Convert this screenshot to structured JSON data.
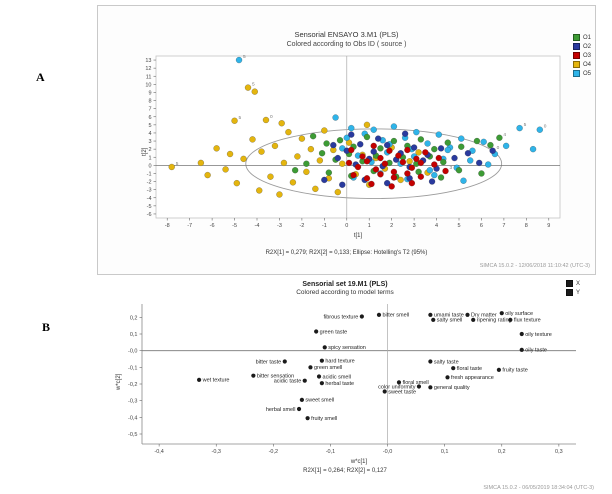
{
  "page": {
    "panel_a_label": "A",
    "panel_b_label": "B"
  },
  "chart_data": [
    {
      "type": "scatter",
      "title": "Sensorial ENSAYO 3.M1 (PLS)",
      "subtitle": "Colored according to Obs ID ( source )",
      "xlabel": "t[1]",
      "ylabel": "t[2]",
      "xlim": [
        -8.5,
        9.5
      ],
      "ylim": [
        -6.5,
        13.5
      ],
      "xticks": [
        -8,
        -7,
        -6,
        -5,
        -4,
        -3,
        -2,
        -1,
        0,
        1,
        2,
        3,
        4,
        5,
        6,
        7,
        8,
        9
      ],
      "yticks": [
        -6,
        -5,
        -4,
        -3,
        -2,
        -1,
        0,
        1,
        2,
        3,
        4,
        5,
        6,
        7,
        8,
        9,
        10,
        11,
        12,
        13
      ],
      "ellipse": {
        "cx": 1.2,
        "cy": 0.2,
        "rx": 5.7,
        "ry": 4.3,
        "note": "Hotelling's T2 (95%)"
      },
      "footnote": "R2X[1] = 0,279; R2X[2] = 0,133; Ellipse: Hotelling's T2 (95%)",
      "footer": "SIMCA 15.0.2 - 12/06/2018 11:10:42 (UTC-3)",
      "legend": [
        {
          "label": "O1",
          "color": "#3d9b35"
        },
        {
          "label": "O2",
          "color": "#2a3a9e"
        },
        {
          "label": "O3",
          "color": "#c40000"
        },
        {
          "label": "O4",
          "color": "#e4b50e"
        },
        {
          "label": "O5",
          "color": "#2fb4e9"
        }
      ],
      "series": [
        {
          "name": "O4",
          "color": "#e4b50e",
          "points": [
            [
              -7.8,
              -0.2,
              "5"
            ],
            [
              -6.5,
              0.3
            ],
            [
              -6.2,
              -1.2
            ],
            [
              -5.8,
              2.1
            ],
            [
              -5.4,
              -0.5
            ],
            [
              -5.2,
              1.4
            ],
            [
              -5.0,
              5.5,
              "5"
            ],
            [
              -4.9,
              -2.2
            ],
            [
              -4.6,
              0.8
            ],
            [
              -4.4,
              9.6,
              "5"
            ],
            [
              -4.1,
              9.1
            ],
            [
              -4.2,
              3.2
            ],
            [
              -3.9,
              -3.1
            ],
            [
              -3.8,
              1.7
            ],
            [
              -3.6,
              5.6,
              "0"
            ],
            [
              -3.4,
              -1.4
            ],
            [
              -3.2,
              2.4
            ],
            [
              -3.0,
              -3.6
            ],
            [
              -2.8,
              0.3
            ],
            [
              -2.6,
              4.1
            ],
            [
              -2.4,
              -2.1
            ],
            [
              -2.2,
              1.1
            ],
            [
              -2.0,
              3.3
            ],
            [
              -1.8,
              -0.8
            ],
            [
              -1.6,
              2.0
            ],
            [
              -1.4,
              -2.9
            ],
            [
              -1.2,
              0.6
            ],
            [
              -1.0,
              4.3
            ],
            [
              -0.8,
              -1.6
            ],
            [
              -0.6,
              1.9
            ],
            [
              -0.4,
              -3.3
            ],
            [
              -0.2,
              0.2
            ],
            [
              0.1,
              2.8
            ],
            [
              0.4,
              -1.1
            ],
            [
              0.7,
              1.3
            ],
            [
              1.0,
              -2.4
            ],
            [
              1.3,
              0.9
            ],
            [
              1.7,
              -0.4
            ],
            [
              2.0,
              2.2
            ],
            [
              2.4,
              -1.8
            ],
            [
              2.8,
              0.5
            ],
            [
              3.2,
              1.6
            ],
            [
              3.6,
              -0.9
            ],
            [
              0.9,
              5.0
            ],
            [
              -2.9,
              5.2
            ]
          ]
        },
        {
          "name": "O5",
          "color": "#2fb4e9",
          "points": [
            [
              -4.8,
              13.0,
              "5"
            ],
            [
              -0.5,
              5.9
            ],
            [
              0.2,
              4.6
            ],
            [
              0.8,
              3.9
            ],
            [
              1.2,
              4.4
            ],
            [
              1.6,
              3.1
            ],
            [
              2.1,
              4.8
            ],
            [
              2.6,
              3.4
            ],
            [
              3.1,
              4.1
            ],
            [
              3.6,
              2.7
            ],
            [
              4.1,
              3.8
            ],
            [
              4.6,
              2.2
            ],
            [
              5.1,
              3.3
            ],
            [
              5.6,
              1.8
            ],
            [
              6.1,
              2.9
            ],
            [
              6.6,
              1.4
            ],
            [
              7.1,
              2.4
            ],
            [
              7.7,
              4.6,
              "5"
            ],
            [
              8.3,
              2.0
            ],
            [
              8.6,
              4.4,
              "0"
            ],
            [
              -0.2,
              2.1
            ],
            [
              0.5,
              1.2
            ],
            [
              1.1,
              0.4
            ],
            [
              1.8,
              1.6
            ],
            [
              2.4,
              0.2
            ],
            [
              3.0,
              1.1
            ],
            [
              3.7,
              -0.6
            ],
            [
              4.3,
              0.8
            ],
            [
              4.9,
              -0.3
            ],
            [
              5.5,
              0.6
            ],
            [
              0.3,
              -1.5
            ],
            [
              1.5,
              -1.0
            ],
            [
              2.7,
              -1.7
            ],
            [
              3.9,
              -1.2
            ],
            [
              5.2,
              -1.9
            ],
            [
              6.3,
              0.1
            ],
            [
              1.9,
              2.6
            ],
            [
              2.9,
              2.0
            ],
            [
              4.5,
              1.9
            ],
            [
              0.0,
              3.4
            ]
          ]
        },
        {
          "name": "O1",
          "color": "#3d9b35",
          "points": [
            [
              -1.5,
              3.6
            ],
            [
              -0.9,
              2.7
            ],
            [
              -0.3,
              3.1
            ],
            [
              0.3,
              2.3
            ],
            [
              0.9,
              3.5
            ],
            [
              1.5,
              2.1
            ],
            [
              2.1,
              3.0
            ],
            [
              2.7,
              2.4
            ],
            [
              3.3,
              3.2
            ],
            [
              3.9,
              2.0
            ],
            [
              4.5,
              2.8
            ],
            [
              5.1,
              2.3
            ],
            [
              5.8,
              3.0
            ],
            [
              6.4,
              2.5
            ],
            [
              -1.1,
              1.5
            ],
            [
              -0.5,
              0.7
            ],
            [
              0.1,
              1.4
            ],
            [
              0.7,
              0.5
            ],
            [
              1.3,
              1.2
            ],
            [
              1.9,
              0.3
            ],
            [
              2.5,
              1.0
            ],
            [
              3.1,
              0.2
            ],
            [
              3.7,
              1.1
            ],
            [
              4.3,
              0.4
            ],
            [
              -0.8,
              -0.9
            ],
            [
              0.2,
              -1.3
            ],
            [
              1.2,
              -0.7
            ],
            [
              2.2,
              -1.4
            ],
            [
              3.2,
              -0.8
            ],
            [
              4.2,
              -1.5
            ],
            [
              5.0,
              -0.6
            ],
            [
              6.0,
              -1.0
            ],
            [
              -1.8,
              0.2
            ],
            [
              -2.3,
              -0.6
            ],
            [
              6.8,
              3.4,
              "4"
            ]
          ]
        },
        {
          "name": "O2",
          "color": "#2a3a9e",
          "points": [
            [
              -0.6,
              2.5
            ],
            [
              0.0,
              1.8
            ],
            [
              0.6,
              2.6
            ],
            [
              1.2,
              1.7
            ],
            [
              1.8,
              2.5
            ],
            [
              2.4,
              1.5
            ],
            [
              3.0,
              2.2
            ],
            [
              3.6,
              1.3
            ],
            [
              4.2,
              2.1
            ],
            [
              -0.4,
              0.9
            ],
            [
              0.4,
              0.1
            ],
            [
              1.0,
              0.8
            ],
            [
              1.6,
              -0.1
            ],
            [
              2.2,
              0.7
            ],
            [
              2.8,
              -0.2
            ],
            [
              3.4,
              0.6
            ],
            [
              4.0,
              -0.4
            ],
            [
              4.8,
              0.9
            ],
            [
              0.8,
              -1.8
            ],
            [
              1.8,
              -2.2
            ],
            [
              2.8,
              -1.6
            ],
            [
              3.8,
              -2.0
            ],
            [
              -1.0,
              -1.8
            ],
            [
              -0.2,
              -2.4
            ],
            [
              5.4,
              1.5
            ],
            [
              5.9,
              0.3
            ],
            [
              6.5,
              1.8,
              "0"
            ],
            [
              0.2,
              3.8
            ],
            [
              1.4,
              3.3
            ],
            [
              2.6,
              3.9
            ]
          ]
        },
        {
          "name": "O3",
          "color": "#c40000",
          "points": [
            [
              0.1,
              0.3
            ],
            [
              0.5,
              -0.2
            ],
            [
              0.9,
              0.5
            ],
            [
              1.3,
              -0.5
            ],
            [
              1.7,
              0.2
            ],
            [
              2.1,
              -0.8
            ],
            [
              2.5,
              0.4
            ],
            [
              2.9,
              -0.3
            ],
            [
              3.3,
              0.3
            ],
            [
              0.3,
              -1.2
            ],
            [
              0.9,
              -1.6
            ],
            [
              1.5,
              -1.1
            ],
            [
              2.1,
              -1.5
            ],
            [
              2.7,
              -1.0
            ],
            [
              3.3,
              -1.4
            ],
            [
              0.7,
              1.1
            ],
            [
              1.5,
              0.9
            ],
            [
              2.3,
              1.2
            ],
            [
              3.1,
              0.8
            ],
            [
              3.9,
              0.1
            ],
            [
              1.1,
              -2.3
            ],
            [
              2.0,
              -2.6
            ],
            [
              2.9,
              -2.2
            ],
            [
              1.9,
              1.8
            ],
            [
              2.7,
              1.9
            ],
            [
              3.5,
              1.6
            ],
            [
              4.1,
              0.9
            ],
            [
              4.4,
              -0.7,
              "3"
            ],
            [
              1.2,
              2.4
            ],
            [
              0.2,
              1.9
            ]
          ]
        }
      ]
    },
    {
      "type": "scatter",
      "title": "Sensorial set 19.M1 (PLS)",
      "subtitle": "Colored according to model terms",
      "xlabel": "w*c[1]",
      "ylabel": "w*c[2]",
      "xlim": [
        -0.43,
        0.33
      ],
      "ylim": [
        -0.56,
        0.28
      ],
      "xticks": [
        {
          "v": -0.4,
          "t": "-0,4"
        },
        {
          "v": -0.3,
          "t": "-0,3"
        },
        {
          "v": -0.2,
          "t": "-0,2"
        },
        {
          "v": -0.1,
          "t": "-0,1"
        },
        {
          "v": 0,
          "t": "-0,0"
        },
        {
          "v": 0.1,
          "t": "0,1"
        },
        {
          "v": 0.2,
          "t": "0,2"
        },
        {
          "v": 0.3,
          "t": "0,3"
        }
      ],
      "yticks": [
        {
          "v": 0.2,
          "t": "0,2"
        },
        {
          "v": 0.1,
          "t": "0,1"
        },
        {
          "v": 0,
          "t": "-0,0"
        },
        {
          "v": -0.1,
          "t": "-0,1"
        },
        {
          "v": -0.2,
          "t": "-0,2"
        },
        {
          "v": -0.3,
          "t": "-0,3"
        },
        {
          "v": -0.4,
          "t": "-0,4"
        },
        {
          "v": -0.5,
          "t": "-0,5"
        }
      ],
      "footnote": "R2X[1] = 0,264; R2X[2] = 0,127",
      "footer": "SIMCA 15.0.2 - 06/05/2019 18:34:04 (UTC-3)",
      "legend": [
        {
          "label": "X",
          "color": "#1a1a1a"
        },
        {
          "label": "Y",
          "color": "#1a1a1a"
        }
      ],
      "points": [
        {
          "label": "fibrous texture",
          "x": -0.045,
          "y": 0.205,
          "side": "left"
        },
        {
          "label": "bitter smell",
          "x": -0.015,
          "y": 0.215,
          "side": "right"
        },
        {
          "label": "umami taste",
          "x": 0.075,
          "y": 0.215,
          "side": "right"
        },
        {
          "label": "Dry matter",
          "x": 0.14,
          "y": 0.215,
          "side": "right"
        },
        {
          "label": "oily surface",
          "x": 0.2,
          "y": 0.225,
          "side": "right"
        },
        {
          "label": "salty smell",
          "x": 0.08,
          "y": 0.185,
          "side": "right"
        },
        {
          "label": "ripening rating",
          "x": 0.15,
          "y": 0.185,
          "side": "right"
        },
        {
          "label": "flux texture",
          "x": 0.215,
          "y": 0.185,
          "side": "right"
        },
        {
          "label": "green taste",
          "x": -0.125,
          "y": 0.115,
          "side": "right"
        },
        {
          "label": "oily texture",
          "x": 0.235,
          "y": 0.1,
          "side": "right"
        },
        {
          "label": "spicy sensation",
          "x": -0.11,
          "y": 0.02,
          "side": "right"
        },
        {
          "label": "oily taste",
          "x": 0.235,
          "y": 0.005,
          "side": "right"
        },
        {
          "label": "bitter taste",
          "x": -0.18,
          "y": -0.065,
          "side": "left"
        },
        {
          "label": "hard texture",
          "x": -0.115,
          "y": -0.06,
          "side": "right"
        },
        {
          "label": "salty taste",
          "x": 0.075,
          "y": -0.065,
          "side": "right"
        },
        {
          "label": "green smell",
          "x": -0.135,
          "y": -0.1,
          "side": "right"
        },
        {
          "label": "floral taste",
          "x": 0.115,
          "y": -0.105,
          "side": "right"
        },
        {
          "label": "fruity taste",
          "x": 0.195,
          "y": -0.115,
          "side": "right"
        },
        {
          "label": "bitter sensation",
          "x": -0.235,
          "y": -0.15,
          "side": "right"
        },
        {
          "label": "acidic smell",
          "x": -0.12,
          "y": -0.155,
          "side": "right"
        },
        {
          "label": "fresh appearance",
          "x": 0.105,
          "y": -0.16,
          "side": "right"
        },
        {
          "label": "acidic taste",
          "x": -0.145,
          "y": -0.18,
          "side": "left"
        },
        {
          "label": "herbal taste",
          "x": -0.115,
          "y": -0.195,
          "side": "right"
        },
        {
          "label": "wet texture",
          "x": -0.33,
          "y": -0.175,
          "side": "right"
        },
        {
          "label": "floral smell",
          "x": 0.02,
          "y": -0.19,
          "side": "right"
        },
        {
          "label": "color uniformity",
          "x": 0.055,
          "y": -0.215,
          "side": "left"
        },
        {
          "label": "general quality",
          "x": 0.075,
          "y": -0.22,
          "side": "right"
        },
        {
          "label": "sweet taste",
          "x": -0.005,
          "y": -0.245,
          "side": "right"
        },
        {
          "label": "sweet smell",
          "x": -0.15,
          "y": -0.295,
          "side": "right"
        },
        {
          "label": "herbal smell",
          "x": -0.155,
          "y": -0.35,
          "side": "left"
        },
        {
          "label": "fruity smell",
          "x": -0.14,
          "y": -0.405,
          "side": "right"
        }
      ]
    }
  ]
}
